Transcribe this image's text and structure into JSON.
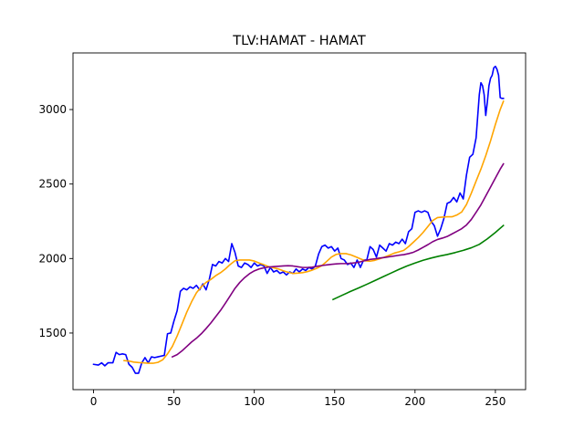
{
  "chart_data": {
    "type": "line",
    "title": "TLV:HAMAT - HAMAT",
    "xlabel": "",
    "ylabel": "",
    "xlim": [
      -12.8,
      268.8
    ],
    "ylim": [
      1120,
      3380
    ],
    "xticks": [
      0,
      50,
      100,
      150,
      200,
      250
    ],
    "yticks": [
      1500,
      2000,
      2500,
      3000
    ],
    "grid": false,
    "legend": "none",
    "series": [
      {
        "color": "#0000ff",
        "points": [
          [
            0,
            1290
          ],
          [
            3,
            1285
          ],
          [
            5,
            1300
          ],
          [
            7,
            1280
          ],
          [
            9,
            1300
          ],
          [
            12,
            1300
          ],
          [
            14,
            1370
          ],
          [
            16,
            1355
          ],
          [
            18,
            1360
          ],
          [
            20,
            1355
          ],
          [
            22,
            1290
          ],
          [
            24,
            1270
          ],
          [
            26,
            1230
          ],
          [
            28,
            1230
          ],
          [
            30,
            1300
          ],
          [
            32,
            1335
          ],
          [
            34,
            1300
          ],
          [
            36,
            1340
          ],
          [
            38,
            1335
          ],
          [
            40,
            1340
          ],
          [
            42,
            1345
          ],
          [
            44,
            1350
          ],
          [
            46,
            1495
          ],
          [
            48,
            1500
          ],
          [
            50,
            1580
          ],
          [
            52,
            1650
          ],
          [
            54,
            1780
          ],
          [
            56,
            1800
          ],
          [
            58,
            1790
          ],
          [
            60,
            1810
          ],
          [
            62,
            1800
          ],
          [
            64,
            1820
          ],
          [
            66,
            1790
          ],
          [
            68,
            1830
          ],
          [
            70,
            1790
          ],
          [
            72,
            1860
          ],
          [
            74,
            1960
          ],
          [
            76,
            1950
          ],
          [
            78,
            1980
          ],
          [
            80,
            1970
          ],
          [
            82,
            2000
          ],
          [
            84,
            1980
          ],
          [
            86,
            2100
          ],
          [
            88,
            2040
          ],
          [
            90,
            1950
          ],
          [
            92,
            1940
          ],
          [
            94,
            1970
          ],
          [
            96,
            1960
          ],
          [
            98,
            1940
          ],
          [
            100,
            1970
          ],
          [
            102,
            1950
          ],
          [
            104,
            1960
          ],
          [
            106,
            1950
          ],
          [
            108,
            1900
          ],
          [
            110,
            1940
          ],
          [
            112,
            1910
          ],
          [
            114,
            1920
          ],
          [
            116,
            1900
          ],
          [
            118,
            1910
          ],
          [
            120,
            1890
          ],
          [
            122,
            1910
          ],
          [
            124,
            1900
          ],
          [
            126,
            1930
          ],
          [
            128,
            1910
          ],
          [
            130,
            1930
          ],
          [
            132,
            1920
          ],
          [
            134,
            1940
          ],
          [
            136,
            1930
          ],
          [
            138,
            1950
          ],
          [
            140,
            2030
          ],
          [
            142,
            2080
          ],
          [
            144,
            2090
          ],
          [
            146,
            2070
          ],
          [
            148,
            2080
          ],
          [
            150,
            2050
          ],
          [
            152,
            2070
          ],
          [
            154,
            2000
          ],
          [
            156,
            1990
          ],
          [
            158,
            1960
          ],
          [
            160,
            1970
          ],
          [
            162,
            1940
          ],
          [
            164,
            1990
          ],
          [
            166,
            1940
          ],
          [
            168,
            1990
          ],
          [
            170,
            1990
          ],
          [
            172,
            2080
          ],
          [
            174,
            2060
          ],
          [
            176,
            2010
          ],
          [
            178,
            2090
          ],
          [
            180,
            2070
          ],
          [
            182,
            2050
          ],
          [
            184,
            2100
          ],
          [
            186,
            2090
          ],
          [
            188,
            2110
          ],
          [
            190,
            2100
          ],
          [
            192,
            2130
          ],
          [
            194,
            2100
          ],
          [
            196,
            2180
          ],
          [
            198,
            2200
          ],
          [
            200,
            2310
          ],
          [
            202,
            2320
          ],
          [
            204,
            2310
          ],
          [
            206,
            2320
          ],
          [
            208,
            2310
          ],
          [
            210,
            2250
          ],
          [
            212,
            2220
          ],
          [
            214,
            2150
          ],
          [
            216,
            2200
          ],
          [
            218,
            2270
          ],
          [
            220,
            2370
          ],
          [
            222,
            2380
          ],
          [
            224,
            2410
          ],
          [
            226,
            2380
          ],
          [
            228,
            2440
          ],
          [
            230,
            2400
          ],
          [
            232,
            2560
          ],
          [
            234,
            2680
          ],
          [
            236,
            2700
          ],
          [
            238,
            2810
          ],
          [
            240,
            3100
          ],
          [
            241,
            3180
          ],
          [
            242,
            3160
          ],
          [
            243,
            3100
          ],
          [
            244,
            2960
          ],
          [
            245,
            3050
          ],
          [
            246,
            3160
          ],
          [
            247,
            3210
          ],
          [
            248,
            3230
          ],
          [
            249,
            3280
          ],
          [
            250,
            3290
          ],
          [
            251,
            3270
          ],
          [
            252,
            3230
          ],
          [
            253,
            3080
          ],
          [
            254,
            3075
          ],
          [
            255,
            3075
          ]
        ]
      },
      {
        "color": "#ffa500",
        "points": [
          [
            19,
            1315
          ],
          [
            22,
            1312
          ],
          [
            25,
            1305
          ],
          [
            28,
            1302
          ],
          [
            31,
            1300
          ],
          [
            34,
            1297
          ],
          [
            37,
            1297
          ],
          [
            40,
            1303
          ],
          [
            43,
            1320
          ],
          [
            46,
            1360
          ],
          [
            49,
            1410
          ],
          [
            52,
            1480
          ],
          [
            55,
            1560
          ],
          [
            58,
            1640
          ],
          [
            61,
            1710
          ],
          [
            64,
            1770
          ],
          [
            67,
            1810
          ],
          [
            70,
            1840
          ],
          [
            73,
            1860
          ],
          [
            76,
            1885
          ],
          [
            79,
            1905
          ],
          [
            82,
            1930
          ],
          [
            85,
            1960
          ],
          [
            88,
            1985
          ],
          [
            91,
            1990
          ],
          [
            94,
            1990
          ],
          [
            97,
            1990
          ],
          [
            100,
            1983
          ],
          [
            103,
            1970
          ],
          [
            106,
            1958
          ],
          [
            109,
            1945
          ],
          [
            112,
            1938
          ],
          [
            115,
            1930
          ],
          [
            118,
            1918
          ],
          [
            121,
            1908
          ],
          [
            124,
            1900
          ],
          [
            127,
            1902
          ],
          [
            130,
            1905
          ],
          [
            133,
            1912
          ],
          [
            136,
            1922
          ],
          [
            139,
            1935
          ],
          [
            142,
            1952
          ],
          [
            145,
            1980
          ],
          [
            148,
            2010
          ],
          [
            151,
            2028
          ],
          [
            154,
            2033
          ],
          [
            157,
            2033
          ],
          [
            160,
            2025
          ],
          [
            163,
            2012
          ],
          [
            166,
            1998
          ],
          [
            169,
            1985
          ],
          [
            172,
            1982
          ],
          [
            175,
            1988
          ],
          [
            178,
            1998
          ],
          [
            181,
            2010
          ],
          [
            184,
            2022
          ],
          [
            187,
            2036
          ],
          [
            190,
            2045
          ],
          [
            193,
            2055
          ],
          [
            196,
            2080
          ],
          [
            199,
            2110
          ],
          [
            202,
            2140
          ],
          [
            205,
            2175
          ],
          [
            208,
            2215
          ],
          [
            211,
            2255
          ],
          [
            214,
            2275
          ],
          [
            217,
            2278
          ],
          [
            220,
            2280
          ],
          [
            223,
            2280
          ],
          [
            226,
            2292
          ],
          [
            229,
            2312
          ],
          [
            232,
            2362
          ],
          [
            235,
            2438
          ],
          [
            238,
            2520
          ],
          [
            241,
            2600
          ],
          [
            244,
            2690
          ],
          [
            247,
            2790
          ],
          [
            250,
            2900
          ],
          [
            253,
            3000
          ],
          [
            255,
            3055
          ]
        ]
      },
      {
        "color": "#800080",
        "points": [
          [
            49,
            1340
          ],
          [
            52,
            1355
          ],
          [
            55,
            1380
          ],
          [
            58,
            1410
          ],
          [
            61,
            1440
          ],
          [
            64,
            1465
          ],
          [
            67,
            1495
          ],
          [
            70,
            1530
          ],
          [
            73,
            1568
          ],
          [
            76,
            1610
          ],
          [
            79,
            1652
          ],
          [
            82,
            1700
          ],
          [
            85,
            1750
          ],
          [
            88,
            1800
          ],
          [
            91,
            1840
          ],
          [
            94,
            1872
          ],
          [
            97,
            1898
          ],
          [
            100,
            1917
          ],
          [
            103,
            1930
          ],
          [
            106,
            1938
          ],
          [
            109,
            1943
          ],
          [
            112,
            1946
          ],
          [
            115,
            1948
          ],
          [
            118,
            1950
          ],
          [
            121,
            1952
          ],
          [
            124,
            1950
          ],
          [
            127,
            1945
          ],
          [
            130,
            1940
          ],
          [
            133,
            1940
          ],
          [
            136,
            1942
          ],
          [
            139,
            1948
          ],
          [
            142,
            1953
          ],
          [
            145,
            1957
          ],
          [
            148,
            1961
          ],
          [
            151,
            1964
          ],
          [
            154,
            1966
          ],
          [
            157,
            1966
          ],
          [
            160,
            1968
          ],
          [
            163,
            1972
          ],
          [
            166,
            1978
          ],
          [
            169,
            1986
          ],
          [
            172,
            1994
          ],
          [
            175,
            1998
          ],
          [
            178,
            2003
          ],
          [
            181,
            2007
          ],
          [
            184,
            2012
          ],
          [
            187,
            2017
          ],
          [
            190,
            2022
          ],
          [
            193,
            2026
          ],
          [
            196,
            2033
          ],
          [
            199,
            2042
          ],
          [
            202,
            2057
          ],
          [
            205,
            2075
          ],
          [
            208,
            2093
          ],
          [
            211,
            2113
          ],
          [
            214,
            2128
          ],
          [
            217,
            2137
          ],
          [
            220,
            2148
          ],
          [
            223,
            2165
          ],
          [
            226,
            2182
          ],
          [
            229,
            2200
          ],
          [
            232,
            2225
          ],
          [
            235,
            2262
          ],
          [
            238,
            2310
          ],
          [
            241,
            2360
          ],
          [
            244,
            2420
          ],
          [
            247,
            2480
          ],
          [
            250,
            2540
          ],
          [
            253,
            2600
          ],
          [
            255,
            2635
          ]
        ]
      },
      {
        "color": "#008000",
        "points": [
          [
            149,
            1725
          ],
          [
            155,
            1755
          ],
          [
            160,
            1780
          ],
          [
            165,
            1803
          ],
          [
            170,
            1827
          ],
          [
            175,
            1852
          ],
          [
            180,
            1877
          ],
          [
            185,
            1902
          ],
          [
            190,
            1927
          ],
          [
            195,
            1950
          ],
          [
            200,
            1970
          ],
          [
            205,
            1988
          ],
          [
            210,
            2003
          ],
          [
            215,
            2016
          ],
          [
            220,
            2027
          ],
          [
            225,
            2040
          ],
          [
            230,
            2055
          ],
          [
            235,
            2072
          ],
          [
            240,
            2095
          ],
          [
            245,
            2132
          ],
          [
            250,
            2175
          ],
          [
            255,
            2222
          ]
        ]
      }
    ]
  }
}
